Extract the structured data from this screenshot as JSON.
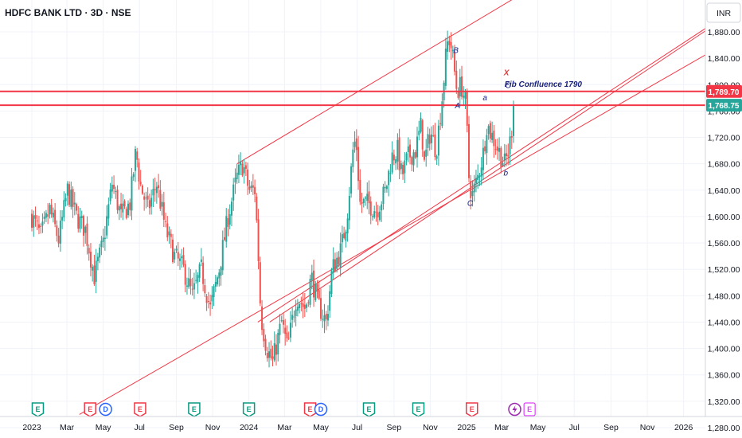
{
  "header": {
    "symbol": "HDFC BANK LTD",
    "interval": "3D",
    "exchange": "NSE",
    "separator": "·",
    "currency": "INR"
  },
  "chart_data": {
    "type": "candlestick",
    "ylim": [
      1258,
      1912
    ],
    "yticks": [
      1280,
      1320,
      1360,
      1400,
      1440,
      1480,
      1520,
      1560,
      1600,
      1640,
      1680,
      1720,
      1760,
      1800,
      1840,
      1880
    ],
    "xlim": [
      -5,
      1200
    ],
    "xticks": [
      {
        "label": "2023",
        "day": 0
      },
      {
        "label": "Mar",
        "day": 59
      },
      {
        "label": "May",
        "day": 120
      },
      {
        "label": "Jul",
        "day": 181
      },
      {
        "label": "Sep",
        "day": 243
      },
      {
        "label": "Nov",
        "day": 304
      },
      {
        "label": "2024",
        "day": 365
      },
      {
        "label": "Mar",
        "day": 425
      },
      {
        "label": "May",
        "day": 486
      },
      {
        "label": "Jul",
        "day": 547
      },
      {
        "label": "Sep",
        "day": 609
      },
      {
        "label": "Nov",
        "day": 670
      },
      {
        "label": "2025",
        "day": 731
      },
      {
        "label": "Mar",
        "day": 790
      },
      {
        "label": "May",
        "day": 851
      },
      {
        "label": "Jul",
        "day": 912
      },
      {
        "label": "Sep",
        "day": 974
      },
      {
        "label": "Nov",
        "day": 1035
      },
      {
        "label": "2026",
        "day": 1096
      }
    ],
    "price_anchors": [
      [
        0,
        1600
      ],
      [
        15,
        1570
      ],
      [
        30,
        1610
      ],
      [
        45,
        1565
      ],
      [
        60,
        1640
      ],
      [
        75,
        1600
      ],
      [
        90,
        1580
      ],
      [
        105,
        1510
      ],
      [
        120,
        1560
      ],
      [
        135,
        1650
      ],
      [
        150,
        1600
      ],
      [
        165,
        1620
      ],
      [
        175,
        1700
      ],
      [
        182,
        1650
      ],
      [
        195,
        1610
      ],
      [
        210,
        1650
      ],
      [
        225,
        1580
      ],
      [
        240,
        1540
      ],
      [
        255,
        1520
      ],
      [
        270,
        1480
      ],
      [
        285,
        1520
      ],
      [
        300,
        1460
      ],
      [
        315,
        1520
      ],
      [
        330,
        1600
      ],
      [
        345,
        1660
      ],
      [
        355,
        1680
      ],
      [
        365,
        1640
      ],
      [
        375,
        1640
      ],
      [
        380,
        1560
      ],
      [
        385,
        1450
      ],
      [
        395,
        1400
      ],
      [
        405,
        1380
      ],
      [
        420,
        1440
      ],
      [
        430,
        1400
      ],
      [
        445,
        1480
      ],
      [
        460,
        1460
      ],
      [
        470,
        1510
      ],
      [
        480,
        1470
      ],
      [
        495,
        1440
      ],
      [
        505,
        1520
      ],
      [
        520,
        1550
      ],
      [
        530,
        1600
      ],
      [
        540,
        1700
      ],
      [
        545,
        1720
      ],
      [
        552,
        1620
      ],
      [
        565,
        1620
      ],
      [
        580,
        1610
      ],
      [
        595,
        1640
      ],
      [
        605,
        1690
      ],
      [
        615,
        1700
      ],
      [
        622,
        1660
      ],
      [
        632,
        1690
      ],
      [
        645,
        1700
      ],
      [
        655,
        1740
      ],
      [
        660,
        1680
      ],
      [
        670,
        1730
      ],
      [
        680,
        1700
      ],
      [
        690,
        1780
      ],
      [
        698,
        1860
      ],
      [
        703,
        1870
      ],
      [
        708,
        1840
      ],
      [
        715,
        1790
      ],
      [
        722,
        1800
      ],
      [
        730,
        1770
      ],
      [
        735,
        1660
      ],
      [
        740,
        1630
      ],
      [
        750,
        1660
      ],
      [
        760,
        1700
      ],
      [
        765,
        1740
      ],
      [
        775,
        1720
      ],
      [
        785,
        1700
      ],
      [
        795,
        1680
      ],
      [
        802,
        1700
      ],
      [
        808,
        1740
      ],
      [
        812,
        1768.75
      ]
    ],
    "horizontal_levels": [
      1789.7,
      1768.75
    ],
    "price_labels": [
      {
        "value": 1789.7,
        "text": "1,789.70"
      },
      {
        "value": 1768.75,
        "text": "1,768.75"
      }
    ],
    "trend_lines": [
      {
        "name": "lower-channel",
        "from": [
          80,
          1300
        ],
        "to": [
          1200,
          1880
        ]
      },
      {
        "name": "mid-channel-a",
        "from": [
          380,
          1440
        ],
        "to": [
          1200,
          1925
        ]
      },
      {
        "name": "mid-channel-b",
        "from": [
          400,
          1440
        ],
        "to": [
          1200,
          1922
        ]
      },
      {
        "name": "upper-channel",
        "from": [
          345,
          1680
        ],
        "to": [
          1200,
          2140
        ]
      }
    ],
    "wave_labels": [
      {
        "text": "B",
        "day": 713,
        "price": 1848
      },
      {
        "text": "A",
        "day": 716,
        "price": 1764
      },
      {
        "text": "a",
        "day": 762,
        "price": 1776
      },
      {
        "text": "C",
        "day": 801,
        "price": 1795
      },
      {
        "text": "C",
        "day": 737,
        "price": 1616
      },
      {
        "text": "b",
        "day": 797,
        "price": 1662
      }
    ],
    "annotations": [
      {
        "text": "Fib Confluence 1790",
        "day": 860,
        "price": 1797,
        "color": "#1a237e"
      },
      {
        "text": "X",
        "day": 798,
        "price": 1814,
        "color": "#e53935"
      }
    ],
    "events": [
      {
        "text": "E",
        "day": 10,
        "kind": "earnings"
      },
      {
        "text": "E",
        "day": 98,
        "kind": "earnings-miss"
      },
      {
        "text": "D",
        "day": 124,
        "kind": "dividend"
      },
      {
        "text": "E",
        "day": 182,
        "kind": "earnings-miss"
      },
      {
        "text": "E",
        "day": 273,
        "kind": "earnings"
      },
      {
        "text": "E",
        "day": 365,
        "kind": "earnings"
      },
      {
        "text": "E",
        "day": 468,
        "kind": "earnings-miss"
      },
      {
        "text": "D",
        "day": 486,
        "kind": "dividend"
      },
      {
        "text": "E",
        "day": 567,
        "kind": "earnings"
      },
      {
        "text": "E",
        "day": 650,
        "kind": "earnings"
      },
      {
        "text": "E",
        "day": 740,
        "kind": "earnings-miss"
      },
      {
        "text": "",
        "day": 812,
        "kind": "split"
      },
      {
        "text": "E",
        "day": 837,
        "kind": "earnings-upcoming"
      }
    ],
    "colors": {
      "up": "#26a69a",
      "down": "#ef5350",
      "level": "#f23645",
      "last_price": "#26a69a",
      "level_label": "#f23645",
      "grid": "#f0f3fa",
      "axis": "#131722"
    }
  }
}
